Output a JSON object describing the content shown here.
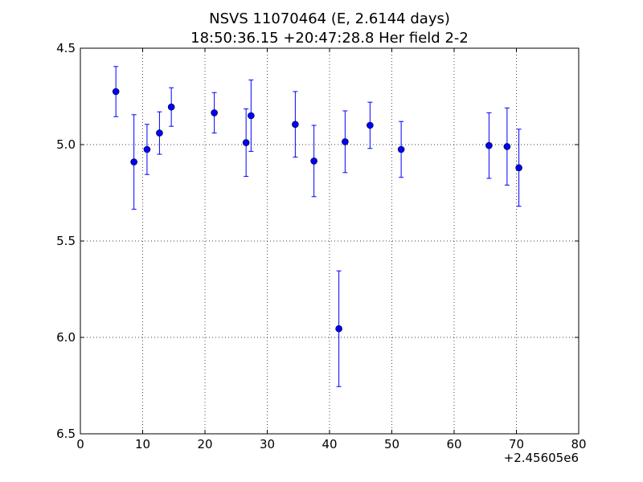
{
  "chart_data": {
    "type": "scatter",
    "title_line1": "NSVS 11070464 (E, 2.6144 days)",
    "title_line2": "18:50:36.15 +20:47:28.8 Her field 2-2",
    "xlabel": "",
    "ylabel": "",
    "x_offset_label": "+2.45605e6",
    "xlim": [
      0,
      80
    ],
    "ylim": [
      4.5,
      6.5
    ],
    "y_inverted": true,
    "grid": true,
    "x_ticks": [
      "0",
      "10",
      "20",
      "30",
      "40",
      "50",
      "60",
      "70",
      "80"
    ],
    "y_ticks": [
      "4.5",
      "5.0",
      "5.5",
      "6.0",
      "6.5"
    ],
    "marker_color": "#0000ff",
    "points": [
      {
        "x": 5.7,
        "y": 4.725,
        "err": 0.13
      },
      {
        "x": 8.6,
        "y": 5.09,
        "err": 0.245
      },
      {
        "x": 10.7,
        "y": 5.025,
        "err": 0.13
      },
      {
        "x": 12.7,
        "y": 4.94,
        "err": 0.11
      },
      {
        "x": 14.6,
        "y": 4.805,
        "err": 0.1
      },
      {
        "x": 21.5,
        "y": 4.835,
        "err": 0.105
      },
      {
        "x": 26.6,
        "y": 4.99,
        "err": 0.175
      },
      {
        "x": 27.4,
        "y": 4.85,
        "err": 0.185
      },
      {
        "x": 34.5,
        "y": 4.895,
        "err": 0.17
      },
      {
        "x": 37.5,
        "y": 5.085,
        "err": 0.185
      },
      {
        "x": 41.5,
        "y": 5.955,
        "err": 0.3
      },
      {
        "x": 42.5,
        "y": 4.985,
        "err": 0.16
      },
      {
        "x": 46.5,
        "y": 4.9,
        "err": 0.12
      },
      {
        "x": 51.5,
        "y": 5.025,
        "err": 0.145
      },
      {
        "x": 65.6,
        "y": 5.005,
        "err": 0.17
      },
      {
        "x": 68.5,
        "y": 5.01,
        "err": 0.2
      },
      {
        "x": 70.4,
        "y": 5.12,
        "err": 0.2
      }
    ]
  }
}
